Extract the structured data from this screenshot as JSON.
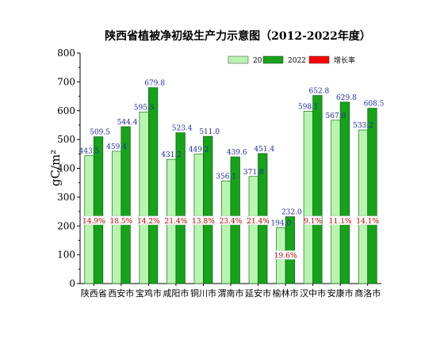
{
  "chart_data": {
    "type": "bar",
    "title": "陕西省植被净初级生产力示意图（2012-2022年度）",
    "xlabel": "",
    "ylabel": "gC/m²",
    "ylim": [
      0,
      800
    ],
    "yticks": [
      0,
      100,
      200,
      300,
      400,
      500,
      600,
      700,
      800
    ],
    "grid": false,
    "legend_position": "top-right",
    "categories": [
      "陕西省",
      "西安市",
      "宝鸡市",
      "咸阳市",
      "铜川市",
      "渭南市",
      "延安市",
      "榆林市",
      "汉中市",
      "安康市",
      "商洛市"
    ],
    "series": [
      {
        "name": "2012",
        "color": "#b8f5b0",
        "values": [
          443.5,
          459.4,
          595.5,
          431.2,
          449.2,
          356.1,
          371.8,
          194.0,
          598.1,
          567.0,
          533.2
        ],
        "labels": [
          "443.5",
          "459.4",
          "595.5",
          "431.2",
          "449.2",
          "356.1",
          "371.8",
          "194.0",
          "598.1",
          "567.0",
          "533.2"
        ]
      },
      {
        "name": "2022",
        "color": "#16a31a",
        "values": [
          509.5,
          544.4,
          679.8,
          523.4,
          511.0,
          439.6,
          451.4,
          232.0,
          652.8,
          629.8,
          608.5
        ],
        "labels": [
          "509.5",
          "544.4",
          "679.8",
          "523.4",
          "511.0",
          "439.6",
          "451.4",
          "232.0",
          "652.8",
          "629.8",
          "608.5"
        ]
      }
    ],
    "growth_rate": {
      "name": "增长率",
      "color": "#ff0000",
      "values": [
        14.9,
        18.5,
        14.2,
        21.4,
        13.8,
        23.4,
        21.4,
        19.6,
        9.1,
        11.1,
        14.1
      ],
      "labels": [
        "14.9%",
        "18.5%",
        "14.2%",
        "21.4%",
        "13.8%",
        "23.4%",
        "21.4%",
        "19.6%",
        "9.1%",
        "11.1%",
        "14.1%"
      ]
    }
  }
}
